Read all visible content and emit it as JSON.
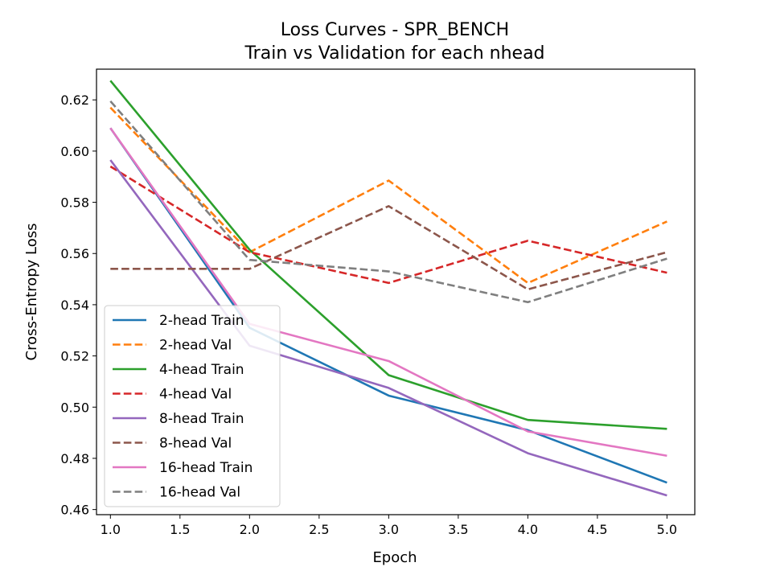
{
  "chart_data": {
    "type": "line",
    "title": "Loss Curves - SPR_BENCH",
    "subtitle": "Train vs Validation for each nhead",
    "xlabel": "Epoch",
    "ylabel": "Cross-Entropy Loss",
    "xlim": [
      0.9,
      5.2
    ],
    "ylim": [
      0.458,
      0.632
    ],
    "xticks": [
      1.0,
      1.5,
      2.0,
      2.5,
      3.0,
      3.5,
      4.0,
      4.5,
      5.0
    ],
    "xtick_labels": [
      "1.0",
      "1.5",
      "2.0",
      "2.5",
      "3.0",
      "3.5",
      "4.0",
      "4.5",
      "5.0"
    ],
    "yticks": [
      0.46,
      0.48,
      0.5,
      0.52,
      0.54,
      0.56,
      0.58,
      0.6,
      0.62
    ],
    "ytick_labels": [
      "0.46",
      "0.48",
      "0.50",
      "0.52",
      "0.54",
      "0.56",
      "0.58",
      "0.60",
      "0.62"
    ],
    "grid": false,
    "legend_position": "lower-left",
    "x": [
      1,
      2,
      3,
      4,
      5
    ],
    "series": [
      {
        "name": "2-head Train",
        "color": "#1f77b4",
        "dashed": false,
        "values": [
          0.609,
          0.531,
          0.5045,
          0.491,
          0.4705
        ]
      },
      {
        "name": "2-head Val",
        "color": "#ff7f0e",
        "dashed": true,
        "values": [
          0.617,
          0.5605,
          0.5885,
          0.5485,
          0.5725
        ]
      },
      {
        "name": "4-head Train",
        "color": "#2ca02c",
        "dashed": false,
        "values": [
          0.6275,
          0.5615,
          0.5125,
          0.495,
          0.4915
        ]
      },
      {
        "name": "4-head Val",
        "color": "#d62728",
        "dashed": true,
        "values": [
          0.594,
          0.5605,
          0.5485,
          0.565,
          0.5525
        ]
      },
      {
        "name": "8-head Train",
        "color": "#9467bd",
        "dashed": false,
        "values": [
          0.5965,
          0.524,
          0.5075,
          0.482,
          0.4655
        ]
      },
      {
        "name": "8-head Val",
        "color": "#8c564b",
        "dashed": true,
        "values": [
          0.554,
          0.554,
          0.5785,
          0.546,
          0.5605
        ]
      },
      {
        "name": "16-head Train",
        "color": "#e377c2",
        "dashed": false,
        "values": [
          0.609,
          0.5325,
          0.518,
          0.4905,
          0.481
        ]
      },
      {
        "name": "16-head Val",
        "color": "#7f7f7f",
        "dashed": true,
        "values": [
          0.6195,
          0.5575,
          0.553,
          0.541,
          0.558
        ]
      }
    ]
  }
}
